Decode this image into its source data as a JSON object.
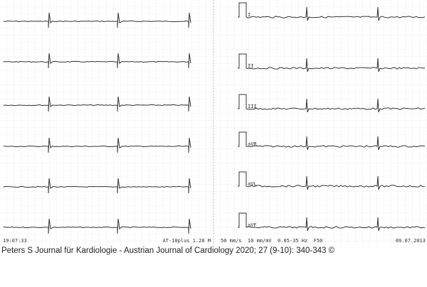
{
  "header": {
    "time": "19:07:33",
    "device": "AT-10plus 1.20 M",
    "settings": "50 mm/s  10 mm/mV  0.05-35 Hz  F50",
    "date": "09.07.2013"
  },
  "leads": [
    "I",
    "II",
    "III",
    "aVR",
    "aVL",
    "aVF"
  ],
  "caption": "Peters S Journal für Kardiologie - Austrian Journal of Cardiology 2020; 27 (9-10): 340-343 ©"
}
